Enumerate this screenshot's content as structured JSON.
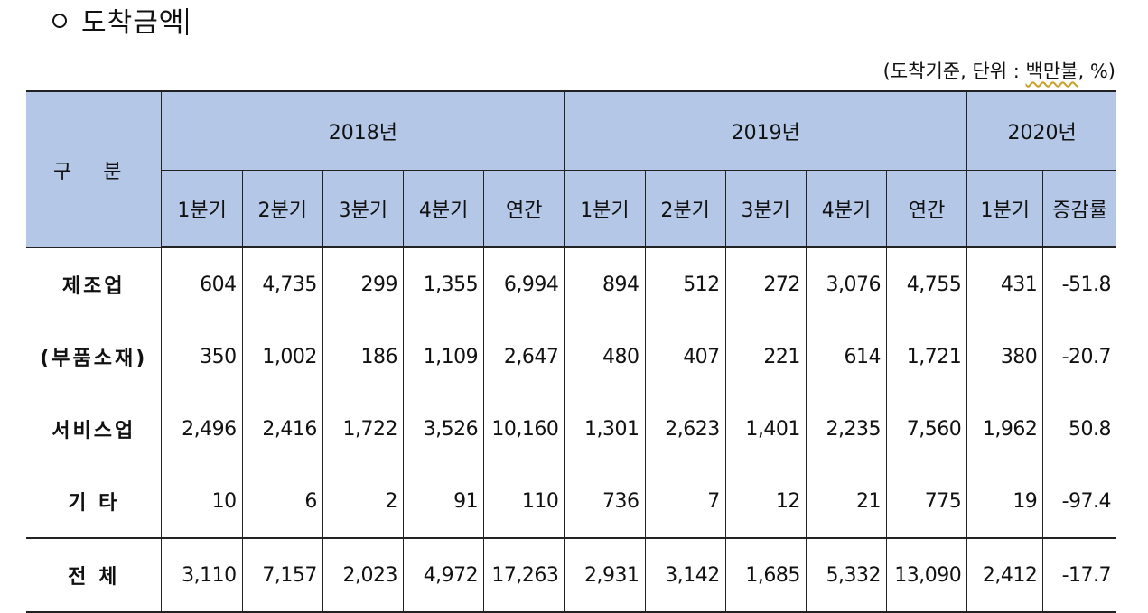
{
  "title": "도착금액",
  "unit_note": {
    "prefix": "(도착기준, 단위 : ",
    "wavy": "백만불",
    "suffix": ", %)"
  },
  "table": {
    "corner_label": "구 분",
    "years": [
      "2018년",
      "2019년",
      "2020년"
    ],
    "subheaders": [
      "1분기",
      "2분기",
      "3분기",
      "4분기",
      "연간",
      "1분기",
      "2분기",
      "3분기",
      "4분기",
      "연간",
      "1분기",
      "증감률"
    ],
    "rows": [
      {
        "label": "제조업",
        "values": [
          "604",
          "4,735",
          "299",
          "1,355",
          "6,994",
          "894",
          "512",
          "272",
          "3,076",
          "4,755",
          "431",
          "-51.8"
        ]
      },
      {
        "label": "(부품소재)",
        "values": [
          "350",
          "1,002",
          "186",
          "1,109",
          "2,647",
          "480",
          "407",
          "221",
          "614",
          "1,721",
          "380",
          "-20.7"
        ]
      },
      {
        "label": "서비스업",
        "values": [
          "2,496",
          "2,416",
          "1,722",
          "3,526",
          "10,160",
          "1,301",
          "2,623",
          "1,401",
          "2,235",
          "7,560",
          "1,962",
          "50.8"
        ]
      },
      {
        "label": "기  타",
        "values": [
          "10",
          "6",
          "2",
          "91",
          "110",
          "736",
          "7",
          "12",
          "21",
          "775",
          "19",
          "-97.4"
        ]
      },
      {
        "label": "전  체",
        "values": [
          "3,110",
          "7,157",
          "2,023",
          "4,972",
          "17,263",
          "2,931",
          "3,142",
          "1,685",
          "5,332",
          "13,090",
          "2,412",
          "-17.7"
        ]
      }
    ]
  }
}
